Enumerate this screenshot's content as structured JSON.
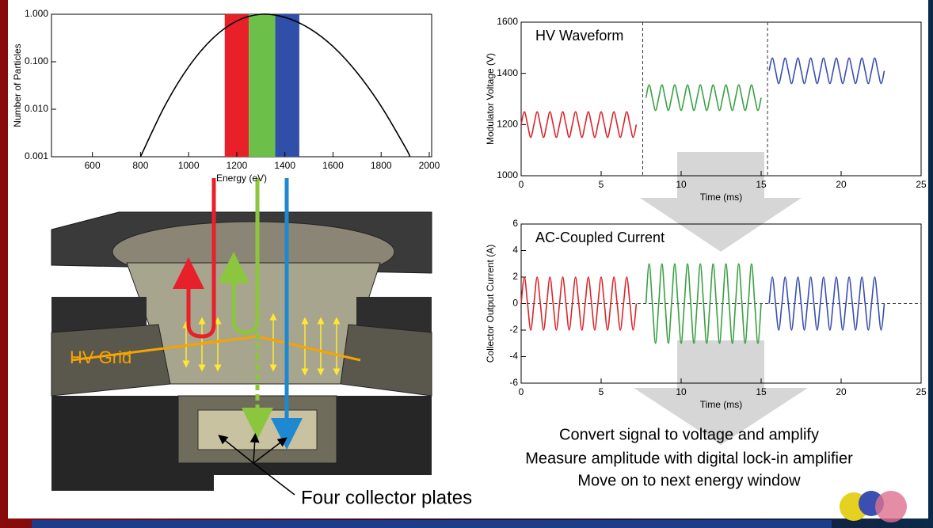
{
  "chart_data": [
    {
      "type": "line",
      "xlabel": "Energy (eV)",
      "ylabel": "Number of Particles",
      "ylog": true,
      "xlim": [
        430,
        2010
      ],
      "xticks": [
        600,
        800,
        1000,
        1200,
        1400,
        1600,
        1800,
        2000
      ],
      "ylim": [
        0.001,
        1
      ],
      "yticks": [
        0.001,
        {
          "value": 0.01,
          "label": "0.010"
        },
        {
          "value": 0.1,
          "label": "0.100"
        },
        {
          "value": 1,
          "label": "1.000"
        }
      ],
      "bands": [
        {
          "xlim": [
            1150,
            1250
          ],
          "color": "#e8202a"
        },
        {
          "xlim": [
            1250,
            1360
          ],
          "color": "#6cc04a"
        },
        {
          "xlim": [
            1360,
            1460
          ],
          "color": "#2f4fa8"
        }
      ],
      "series": [
        {
          "color": "#000000",
          "x": [
            800,
            900,
            1000,
            1100,
            1200,
            1300,
            1400,
            1500,
            1600,
            1700,
            1800,
            1900,
            1920
          ],
          "values": [
            0.001,
            0.0115,
            0.078,
            0.31,
            0.72,
            1,
            0.86,
            0.51,
            0.21,
            0.059,
            0.0116,
            0.0016,
            0.001
          ]
        }
      ]
    },
    {
      "type": "line",
      "annotation": "HV Waveform",
      "xlabel": "Time (ms)",
      "ylabel": "Modulator Voltage (V)",
      "xlim": [
        0,
        25
      ],
      "xticks": [
        0,
        5,
        10,
        15,
        20,
        25
      ],
      "ylim": [
        1000,
        1600
      ],
      "yticks": [
        1000,
        1200,
        1400,
        1600
      ],
      "vlines": [
        7.6,
        15.4
      ],
      "series": [
        {
          "color": "#d9262c",
          "x": [
            0,
            0.2,
            0.4,
            0.6,
            0.8,
            1,
            1.2,
            1.4,
            1.6,
            1.8,
            2,
            2.2,
            2.4,
            2.6,
            2.8,
            3,
            3.2,
            3.4,
            3.6,
            3.8,
            4,
            4.2,
            4.4,
            4.6,
            4.8,
            5,
            5.2,
            5.4,
            5.6,
            5.8,
            6,
            6.2,
            6.4,
            6.6,
            6.8,
            7,
            7.2
          ],
          "values": [
            1200,
            1250,
            1200,
            1150,
            1200,
            1250,
            1200,
            1150,
            1200,
            1250,
            1200,
            1150,
            1200,
            1250,
            1200,
            1150,
            1200,
            1250,
            1200,
            1150,
            1200,
            1250,
            1200,
            1150,
            1200,
            1250,
            1200,
            1150,
            1200,
            1250,
            1200,
            1150,
            1200,
            1250,
            1200,
            1150,
            1200
          ]
        },
        {
          "color": "#3aa043",
          "x": [
            7.8,
            8,
            8.2,
            8.4,
            8.6,
            8.8,
            9,
            9.2,
            9.4,
            9.6,
            9.8,
            10,
            10.2,
            10.4,
            10.6,
            10.8,
            11,
            11.2,
            11.4,
            11.6,
            11.8,
            12,
            12.2,
            12.4,
            12.6,
            12.8,
            13,
            13.2,
            13.4,
            13.6,
            13.8,
            14,
            14.2,
            14.4,
            14.6,
            14.8,
            15
          ],
          "values": [
            1305,
            1355,
            1305,
            1255,
            1305,
            1355,
            1305,
            1255,
            1305,
            1355,
            1305,
            1255,
            1305,
            1355,
            1305,
            1255,
            1305,
            1355,
            1305,
            1255,
            1305,
            1355,
            1305,
            1255,
            1305,
            1355,
            1305,
            1255,
            1305,
            1355,
            1305,
            1255,
            1305,
            1355,
            1305,
            1255,
            1305
          ]
        },
        {
          "color": "#3a4fb0",
          "x": [
            15.5,
            15.7,
            15.9,
            16.1,
            16.3,
            16.5,
            16.7,
            16.9,
            17.1,
            17.3,
            17.5,
            17.7,
            17.9,
            18.1,
            18.3,
            18.5,
            18.7,
            18.9,
            19.1,
            19.3,
            19.5,
            19.7,
            19.9,
            20.1,
            20.3,
            20.5,
            20.7,
            20.9,
            21.1,
            21.3,
            21.5,
            21.7,
            21.9,
            22.1,
            22.3,
            22.5,
            22.7
          ],
          "values": [
            1410,
            1460,
            1410,
            1360,
            1410,
            1460,
            1410,
            1360,
            1410,
            1460,
            1410,
            1360,
            1410,
            1460,
            1410,
            1360,
            1410,
            1460,
            1410,
            1360,
            1410,
            1460,
            1410,
            1360,
            1410,
            1460,
            1410,
            1360,
            1410,
            1460,
            1410,
            1360,
            1410,
            1460,
            1410,
            1360,
            1410
          ]
        }
      ]
    },
    {
      "type": "line",
      "annotation": "AC-Coupled Current",
      "xlabel": "Time (ms)",
      "ylabel": "Collector Output Current (A)",
      "xlim": [
        0,
        25
      ],
      "xticks": [
        0,
        5,
        10,
        15,
        20,
        25
      ],
      "ylim": [
        -6,
        6
      ],
      "yticks": [
        -6,
        -4,
        -2,
        0,
        2,
        4,
        6
      ],
      "hlines": [
        0
      ],
      "series": [
        {
          "color": "#d9262c",
          "x": [
            0,
            0.2,
            0.4,
            0.6,
            0.8,
            1,
            1.2,
            1.4,
            1.6,
            1.8,
            2,
            2.2,
            2.4,
            2.6,
            2.8,
            3,
            3.2,
            3.4,
            3.6,
            3.8,
            4,
            4.2,
            4.4,
            4.6,
            4.8,
            5,
            5.2,
            5.4,
            5.6,
            5.8,
            6,
            6.2,
            6.4,
            6.6,
            6.8,
            7,
            7.2
          ],
          "values": [
            0,
            2,
            0,
            -2,
            0,
            2,
            0,
            -2,
            0,
            2,
            0,
            -2,
            0,
            2,
            0,
            -2,
            0,
            2,
            0,
            -2,
            0,
            2,
            0,
            -2,
            0,
            2,
            0,
            -2,
            0,
            2,
            0,
            -2,
            0,
            2,
            0,
            -2,
            0
          ]
        },
        {
          "color": "#3aa043",
          "x": [
            7.8,
            8,
            8.2,
            8.4,
            8.6,
            8.8,
            9,
            9.2,
            9.4,
            9.6,
            9.8,
            10,
            10.2,
            10.4,
            10.6,
            10.8,
            11,
            11.2,
            11.4,
            11.6,
            11.8,
            12,
            12.2,
            12.4,
            12.6,
            12.8,
            13,
            13.2,
            13.4,
            13.6,
            13.8,
            14,
            14.2,
            14.4,
            14.6,
            14.8,
            15
          ],
          "values": [
            0,
            3,
            0,
            -3,
            0,
            3,
            0,
            -3,
            0,
            3,
            0,
            -3,
            0,
            3,
            0,
            -3,
            0,
            3,
            0,
            -3,
            0,
            3,
            0,
            -3,
            0,
            3,
            0,
            -3,
            0,
            3,
            0,
            -3,
            0,
            3,
            0,
            -3,
            0
          ]
        },
        {
          "color": "#3a4fb0",
          "x": [
            15.5,
            15.7,
            15.9,
            16.1,
            16.3,
            16.5,
            16.7,
            16.9,
            17.1,
            17.3,
            17.5,
            17.7,
            17.9,
            18.1,
            18.3,
            18.5,
            18.7,
            18.9,
            19.1,
            19.3,
            19.5,
            19.7,
            19.9,
            20.1,
            20.3,
            20.5,
            20.7,
            20.9,
            21.1,
            21.3,
            21.5,
            21.7,
            21.9,
            22.1,
            22.3,
            22.5,
            22.7
          ],
          "values": [
            0,
            2,
            0,
            -2,
            0,
            2,
            0,
            -2,
            0,
            2,
            0,
            -2,
            0,
            2,
            0,
            -2,
            0,
            2,
            0,
            -2,
            0,
            2,
            0,
            -2,
            0,
            2,
            0,
            -2,
            0,
            2,
            0,
            -2,
            0,
            2,
            0,
            -2,
            0
          ]
        }
      ]
    }
  ],
  "labels": {
    "hv_grid": "HV Grid",
    "collector_plates": "Four collector plates"
  },
  "steps": [
    "Convert signal to voltage and amplify",
    "Measure amplitude with digital lock-in amplifier",
    "Move on to next energy window"
  ]
}
